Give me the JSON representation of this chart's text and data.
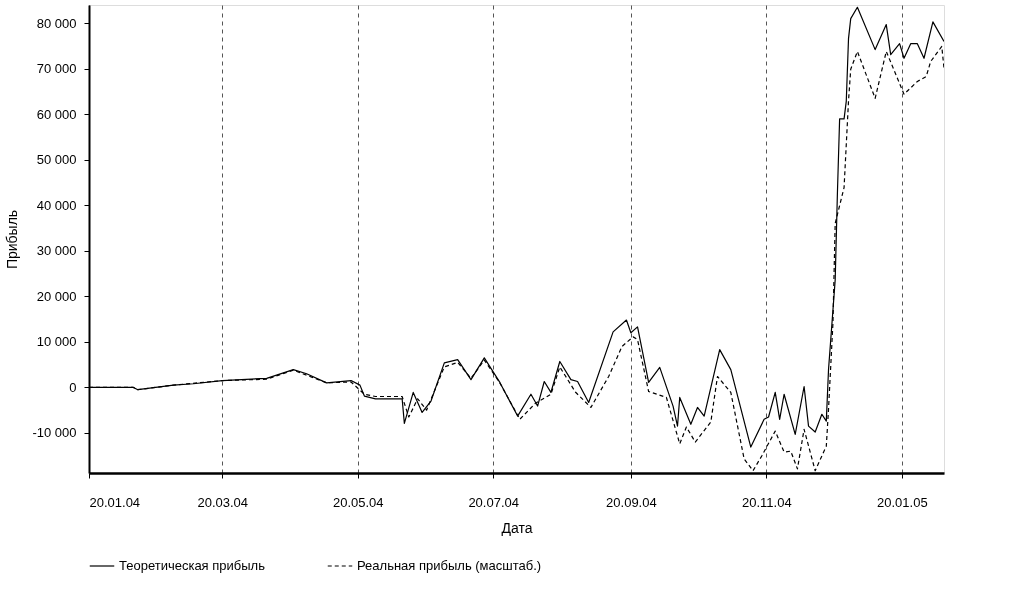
{
  "chart_data": {
    "type": "line",
    "xlabel": "Дата",
    "ylabel": "Прибыль",
    "xlim": [
      "2004-01-20",
      "2005-02-08"
    ],
    "ylim": [
      -18800,
      84000
    ],
    "xticks": [
      {
        "value": "2004-01-20",
        "label": "20.01.04"
      },
      {
        "value": "2004-03-20",
        "label": "20.03.04"
      },
      {
        "value": "2004-05-20",
        "label": "20.05.04"
      },
      {
        "value": "2004-07-20",
        "label": "20.07.04"
      },
      {
        "value": "2004-09-20",
        "label": "20.09.04"
      },
      {
        "value": "2004-11-20",
        "label": "20.11.04"
      },
      {
        "value": "2005-01-20",
        "label": "20.01.05"
      }
    ],
    "yticks": [
      {
        "value": -10000,
        "label": "-10 000"
      },
      {
        "value": 0,
        "label": "0"
      },
      {
        "value": 10000,
        "label": "10 000"
      },
      {
        "value": 20000,
        "label": "20 000"
      },
      {
        "value": 30000,
        "label": "30 000"
      },
      {
        "value": 40000,
        "label": "40 000"
      },
      {
        "value": 50000,
        "label": "50 000"
      },
      {
        "value": 60000,
        "label": "60 000"
      },
      {
        "value": 70000,
        "label": "70 000"
      },
      {
        "value": 80000,
        "label": "80 000"
      }
    ],
    "grid": "x",
    "legend": "bottom",
    "marker": "none",
    "series": [
      {
        "name": "Теоретическая прибыль",
        "color": "#000000",
        "line_style": "solid",
        "x": [
          "2004-01-20",
          "2004-02-09",
          "2004-02-11",
          "2004-02-27",
          "2004-03-07",
          "2004-03-20",
          "2004-04-09",
          "2004-04-21",
          "2004-04-27",
          "2004-05-06",
          "2004-05-17",
          "2004-05-21",
          "2004-05-23",
          "2004-05-28",
          "2004-06-09",
          "2004-06-10",
          "2004-06-14",
          "2004-06-18",
          "2004-06-22",
          "2004-06-28",
          "2004-07-04",
          "2004-07-10",
          "2004-07-16",
          "2004-07-23",
          "2004-07-31",
          "2004-08-06",
          "2004-08-09",
          "2004-08-12",
          "2004-08-15",
          "2004-08-19",
          "2004-08-24",
          "2004-08-27",
          "2004-09-01",
          "2004-09-12",
          "2004-09-18",
          "2004-09-20",
          "2004-09-23",
          "2004-09-28",
          "2004-10-03",
          "2004-10-09",
          "2004-10-11",
          "2004-10-12",
          "2004-10-17",
          "2004-10-20",
          "2004-10-23",
          "2004-10-30",
          "2004-11-04",
          "2004-11-13",
          "2004-11-19",
          "2004-11-21",
          "2004-11-24",
          "2004-11-26",
          "2004-11-28",
          "2004-12-03",
          "2004-12-07",
          "2004-12-09",
          "2004-12-12",
          "2004-12-15",
          "2004-12-17",
          "2004-12-18",
          "2004-12-21",
          "2004-12-22",
          "2004-12-23",
          "2004-12-25",
          "2004-12-26",
          "2004-12-27",
          "2004-12-28",
          "2004-12-31",
          "2005-01-08",
          "2005-01-13",
          "2005-01-15",
          "2005-01-19",
          "2005-01-21",
          "2005-01-24",
          "2005-01-27",
          "2005-01-30",
          "2005-02-03",
          "2005-02-08"
        ],
        "values": [
          0,
          0,
          -500,
          500,
          800,
          1500,
          2000,
          3900,
          3000,
          1000,
          1500,
          500,
          -1900,
          -2500,
          -2500,
          -7900,
          -1100,
          -5500,
          -3000,
          5400,
          6100,
          1700,
          6500,
          1100,
          -6300,
          -1500,
          -4100,
          1300,
          -1100,
          5700,
          1700,
          1300,
          -3300,
          12200,
          14800,
          12000,
          13300,
          1100,
          4400,
          -4100,
          -8500,
          -2200,
          -8100,
          -4400,
          -6300,
          8300,
          3900,
          -13100,
          -7000,
          -6500,
          -1100,
          -7000,
          -1500,
          -10300,
          200,
          -8500,
          -9800,
          -5900,
          -7400,
          3900,
          23600,
          42600,
          59000,
          59000,
          62900,
          76600,
          81000,
          83500,
          74200,
          79700,
          73100,
          75500,
          72300,
          75500,
          75500,
          72300,
          80300,
          76000
        ]
      },
      {
        "name": "Реальная прибыль (масштаб.)",
        "color": "#000000",
        "line_style": "dashed",
        "x": [
          "2004-01-20",
          "2004-02-09",
          "2004-02-11",
          "2004-02-27",
          "2004-03-20",
          "2004-04-09",
          "2004-04-21",
          "2004-05-06",
          "2004-05-17",
          "2004-05-23",
          "2004-05-28",
          "2004-06-09",
          "2004-06-12",
          "2004-06-16",
          "2004-06-20",
          "2004-06-28",
          "2004-07-04",
          "2004-07-10",
          "2004-07-16",
          "2004-07-23",
          "2004-08-01",
          "2004-08-08",
          "2004-08-15",
          "2004-08-19",
          "2004-08-26",
          "2004-09-02",
          "2004-09-10",
          "2004-09-16",
          "2004-09-21",
          "2004-09-23",
          "2004-09-28",
          "2004-10-06",
          "2004-10-12",
          "2004-10-15",
          "2004-10-19",
          "2004-10-26",
          "2004-10-29",
          "2004-11-04",
          "2004-11-10",
          "2004-11-14",
          "2004-11-18",
          "2004-11-24",
          "2004-11-28",
          "2004-12-01",
          "2004-12-04",
          "2004-12-07",
          "2004-12-12",
          "2004-12-17",
          "2004-12-18",
          "2004-12-20",
          "2004-12-21",
          "2004-12-25",
          "2004-12-27",
          "2004-12-28",
          "2004-12-31",
          "2005-01-08",
          "2005-01-13",
          "2005-01-21",
          "2005-01-27",
          "2005-01-31",
          "2005-02-02",
          "2005-02-07",
          "2005-02-08"
        ],
        "values": [
          0,
          0,
          -500,
          500,
          1500,
          1800,
          3800,
          1000,
          1200,
          -1500,
          -2000,
          -2000,
          -6500,
          -2500,
          -5000,
          4500,
          5500,
          2000,
          6000,
          1000,
          -7000,
          -3500,
          -1500,
          4500,
          -1000,
          -4400,
          2400,
          9000,
          11100,
          10500,
          -900,
          -2200,
          -12400,
          -8700,
          -12000,
          -7600,
          2400,
          -1100,
          -15700,
          -18300,
          -15000,
          -9600,
          -14200,
          -14000,
          -17900,
          -9200,
          -18300,
          -12900,
          -4800,
          14200,
          36000,
          43900,
          62900,
          69900,
          73800,
          63500,
          73800,
          64400,
          67200,
          68300,
          71600,
          74900,
          70100
        ]
      }
    ]
  }
}
